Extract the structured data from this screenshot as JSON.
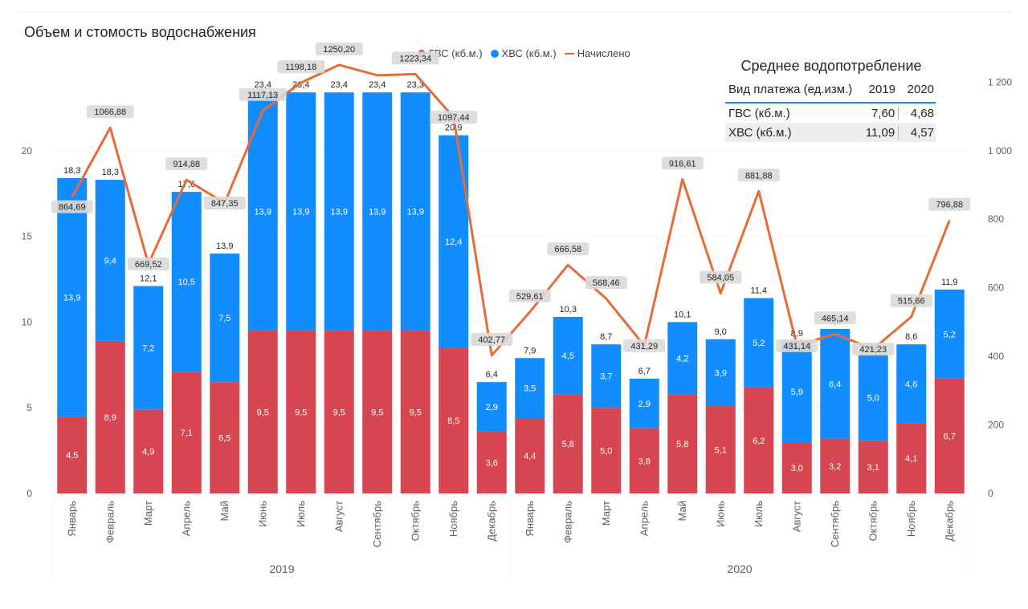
{
  "title": "Объем и стомость водоснабжения",
  "legend": {
    "gvs": "ГВС (кб.м.)",
    "hvs": "ХВС (кб.м.)",
    "charged": "Начислено"
  },
  "colors": {
    "gvs": "#d64550",
    "hvs": "#118dff",
    "charged": "#e66c37"
  },
  "summary_table": {
    "title": "Среднее водопотребление",
    "headers": [
      "Вид платежа (ед.изм.)",
      "2019",
      "2020"
    ],
    "rows": [
      {
        "label": "ГВС (кб.м.)",
        "v2019": "7,60",
        "v2020": "4,68"
      },
      {
        "label": "ХВС (кб.м.)",
        "v2019": "11,09",
        "v2020": "4,57"
      }
    ]
  },
  "chart_data": {
    "type": "bar",
    "stacked": true,
    "categories": [
      "Январь",
      "Февраль",
      "Март",
      "Апрель",
      "Май",
      "Июнь",
      "Июль",
      "Август",
      "Сентябрь",
      "Октябрь",
      "Ноябрь",
      "Декабрь",
      "Январь",
      "Февраль",
      "Март",
      "Апрель",
      "Май",
      "Июнь",
      "Июль",
      "Август",
      "Сентябрь",
      "Октябрь",
      "Ноябрь",
      "Декабрь"
    ],
    "year_groups": [
      {
        "label": "2019",
        "count": 12
      },
      {
        "label": "2020",
        "count": 12
      }
    ],
    "series": [
      {
        "name": "ГВС (кб.м.)",
        "axis": "left",
        "values": [
          4.5,
          8.9,
          4.9,
          7.1,
          6.5,
          9.5,
          9.5,
          9.5,
          9.5,
          9.5,
          8.5,
          3.6,
          4.4,
          5.8,
          5.0,
          3.8,
          5.8,
          5.1,
          6.2,
          3.0,
          3.2,
          3.1,
          4.1,
          6.7
        ],
        "labels": [
          "4,5",
          "8,9",
          "4,9",
          "7,1",
          "6,5",
          "9,5",
          "9,5",
          "9,5",
          "9,5",
          "9,5",
          "8,5",
          "3,6",
          "4,4",
          "5,8",
          "5,0",
          "3,8",
          "5,8",
          "5,1",
          "6,2",
          "3,0",
          "3,2",
          "3,1",
          "4,1",
          "6,7"
        ]
      },
      {
        "name": "ХВС (кб.м.)",
        "axis": "left",
        "values": [
          13.9,
          9.4,
          7.2,
          10.5,
          7.5,
          13.9,
          13.9,
          13.9,
          13.9,
          13.9,
          12.4,
          2.9,
          3.5,
          4.5,
          3.7,
          2.9,
          4.2,
          3.9,
          5.2,
          5.9,
          6.4,
          5.0,
          4.6,
          5.2
        ],
        "labels": [
          "13,9",
          "9,4",
          "7,2",
          "10,5",
          "7,5",
          "13,9",
          "13,9",
          "13,9",
          "13,9",
          "13,9",
          "12,4",
          "2,9",
          "3,5",
          "4,5",
          "3,7",
          "2,9",
          "4,2",
          "3,9",
          "5,2",
          "5,9",
          "6,4",
          "5,0",
          "4,6",
          "5,2"
        ]
      },
      {
        "name": "Начислено",
        "axis": "right",
        "type": "line",
        "values": [
          864.69,
          1066.88,
          669.52,
          914.88,
          847.35,
          1117.13,
          1198.18,
          1250.2,
          1220,
          1223.34,
          1097.44,
          402.77,
          529.61,
          666.58,
          568.46,
          431.29,
          916.61,
          584.05,
          881.88,
          431.14,
          465.14,
          421.23,
          515.66,
          796.88
        ],
        "labels": [
          "864,69",
          "1066,88",
          "669,52",
          "914,88",
          "847,35",
          "1117,13",
          "1198,18",
          "1250,20",
          null,
          "1223,34",
          "1097,44",
          "402,77",
          "529,61",
          "666,58",
          "568,46",
          "431,29",
          "916,61",
          "584,05",
          "881,88",
          "431,14",
          "465,14",
          "421,23",
          "515,66",
          "796,88"
        ]
      }
    ],
    "totals": [
      "18,3",
      "18,3",
      "12,1",
      "17,6",
      "13,9",
      "23,4",
      "23,4",
      "23,4",
      "23,4",
      "23,3",
      "20,9",
      "6,4",
      "7,9",
      "10,3",
      "8,7",
      "6,7",
      "10,1",
      "9,0",
      "11,4",
      "8,9",
      "9,6",
      "8,1",
      "8,6",
      "11,9"
    ],
    "y_left": {
      "min": 0,
      "max": 25,
      "ticks": [
        0,
        5,
        10,
        15,
        20
      ],
      "tick_labels": [
        "0",
        "5",
        "10",
        "15",
        "20"
      ]
    },
    "y_right": {
      "min": 0,
      "max": 1250,
      "ticks": [
        0,
        200,
        400,
        600,
        800,
        1000,
        1200
      ],
      "tick_labels": [
        "0",
        "200",
        "400",
        "600",
        "800",
        "1 000",
        "1 200"
      ]
    },
    "grid": true,
    "legend_position": "top-center"
  }
}
